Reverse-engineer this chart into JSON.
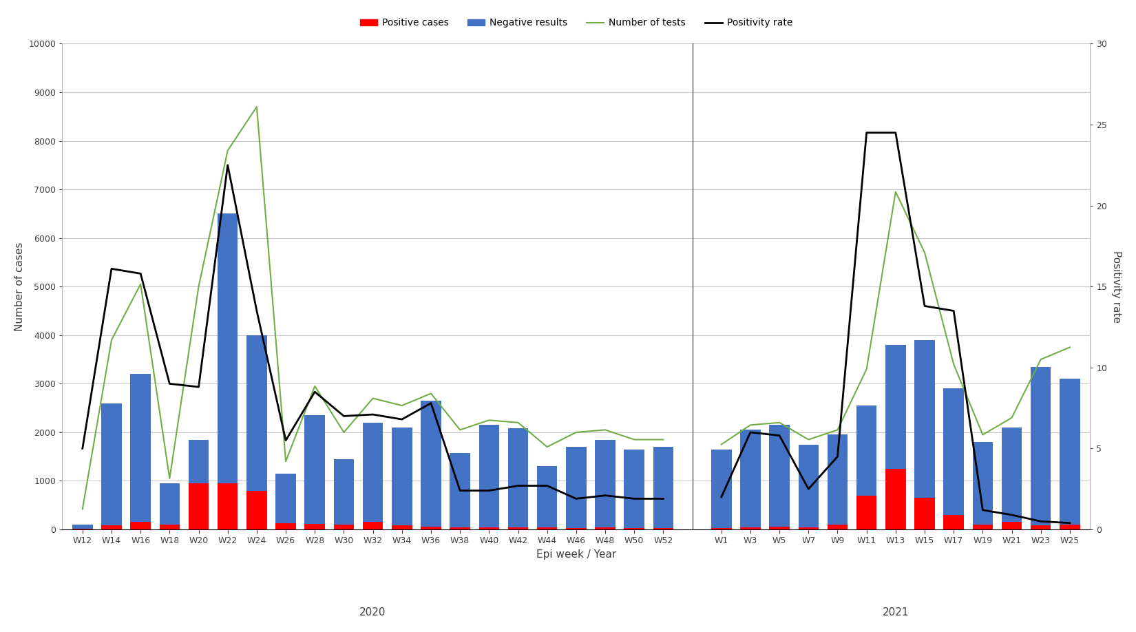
{
  "weeks_2020": [
    "W12",
    "W14",
    "W16",
    "W18",
    "W20",
    "W22",
    "W24",
    "W26",
    "W28",
    "W30",
    "W32",
    "W34",
    "W36",
    "W38",
    "W40",
    "W42",
    "W44",
    "W46",
    "W48",
    "W50",
    "W52"
  ],
  "weeks_2021": [
    "W1",
    "W3",
    "W5",
    "W7",
    "W9",
    "W11",
    "W13",
    "W15",
    "W17",
    "W19",
    "W21",
    "W23",
    "W25"
  ],
  "positive_2020": [
    20,
    80,
    150,
    100,
    950,
    950,
    800,
    130,
    120,
    100,
    150,
    90,
    60,
    50,
    50,
    40,
    40,
    30,
    40,
    30,
    30
  ],
  "negative_2020": [
    100,
    2600,
    3200,
    950,
    1850,
    6500,
    4000,
    1150,
    2350,
    1450,
    2200,
    2100,
    2650,
    1580,
    2150,
    2080,
    1300,
    1700,
    1850,
    1650,
    1700
  ],
  "tests_2020": [
    420,
    3900,
    5050,
    1050,
    5000,
    7800,
    8700,
    1400,
    2950,
    2000,
    2700,
    2550,
    2800,
    2050,
    2250,
    2200,
    1700,
    2000,
    2050,
    1850,
    1850
  ],
  "positivity_2020": [
    5.0,
    16.1,
    15.8,
    9.0,
    8.8,
    22.5,
    13.5,
    5.5,
    8.5,
    7.0,
    7.1,
    6.8,
    7.8,
    2.4,
    2.4,
    2.7,
    2.7,
    1.9,
    2.1,
    1.9,
    1.9
  ],
  "positive_2021": [
    30,
    50,
    60,
    50,
    100,
    700,
    1250,
    650,
    300,
    100,
    150,
    80,
    100
  ],
  "negative_2021": [
    1650,
    2050,
    2150,
    1750,
    1950,
    2550,
    3800,
    3900,
    2900,
    1800,
    2100,
    3350,
    3100
  ],
  "tests_2021": [
    1750,
    2150,
    2200,
    1850,
    2050,
    3300,
    6950,
    5700,
    3400,
    1950,
    2300,
    3500,
    3750
  ],
  "positivity_2021": [
    2.0,
    6.0,
    5.8,
    2.5,
    4.5,
    24.5,
    24.5,
    13.8,
    13.5,
    1.2,
    0.9,
    0.5,
    0.4
  ],
  "left_ylim": [
    0,
    10000
  ],
  "right_ylim": [
    0,
    30
  ],
  "left_yticks": [
    0,
    1000,
    2000,
    3000,
    4000,
    5000,
    6000,
    7000,
    8000,
    9000,
    10000
  ],
  "right_yticks": [
    0,
    5,
    10,
    15,
    20,
    25,
    30
  ],
  "bar_color_positive": "#ff0000",
  "bar_color_negative": "#4472c4",
  "line_color_tests": "#70ad47",
  "line_color_positivity": "#000000",
  "xlabel": "Epi week / Year",
  "ylabel_left": "Number of cases",
  "ylabel_right": "Positivity rate",
  "legend_labels": [
    "Positive cases",
    "Negative results",
    "Number of tests",
    "Positivity rate"
  ],
  "year_label_2020": "2020",
  "year_label_2021": "2021",
  "background_color": "#ffffff",
  "grid_color": "#c8c8c8"
}
